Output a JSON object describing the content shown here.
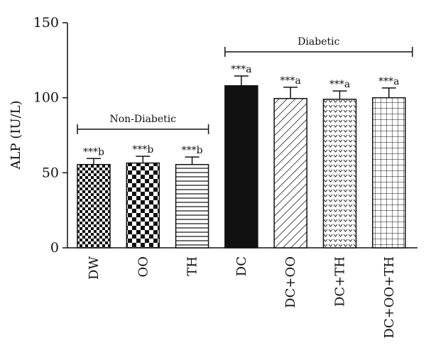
{
  "chart_data": {
    "type": "bar",
    "ylabel": "ALP (IU/L)",
    "xlabel": "",
    "ylim": [
      0,
      150
    ],
    "yticks": [
      "0",
      "50",
      "100",
      "150"
    ],
    "categories": [
      "DW",
      "OO",
      "TH",
      "DC",
      "DC+OO",
      "DC+TH",
      "DC+OO+TH"
    ],
    "values": [
      55.5,
      56.5,
      55.5,
      108,
      99.5,
      99,
      100
    ],
    "errors": [
      4,
      4.5,
      5,
      6.5,
      7.5,
      5.5,
      6.5
    ],
    "significance": [
      "***b",
      "***b",
      "***b",
      "***a",
      "***a",
      "***a",
      "***a"
    ],
    "patterns": [
      "checker-small",
      "checker-large",
      "horizontal-lines",
      "solid",
      "diagonal-lines",
      "dots",
      "grid"
    ],
    "groups": [
      {
        "label": "Non-Diabetic",
        "from": 0,
        "to": 2
      },
      {
        "label": "Diabetic",
        "from": 3,
        "to": 6
      }
    ],
    "colors": {
      "bar_stroke": "#111111",
      "fill": "#111111",
      "background": "#ffffff"
    }
  }
}
